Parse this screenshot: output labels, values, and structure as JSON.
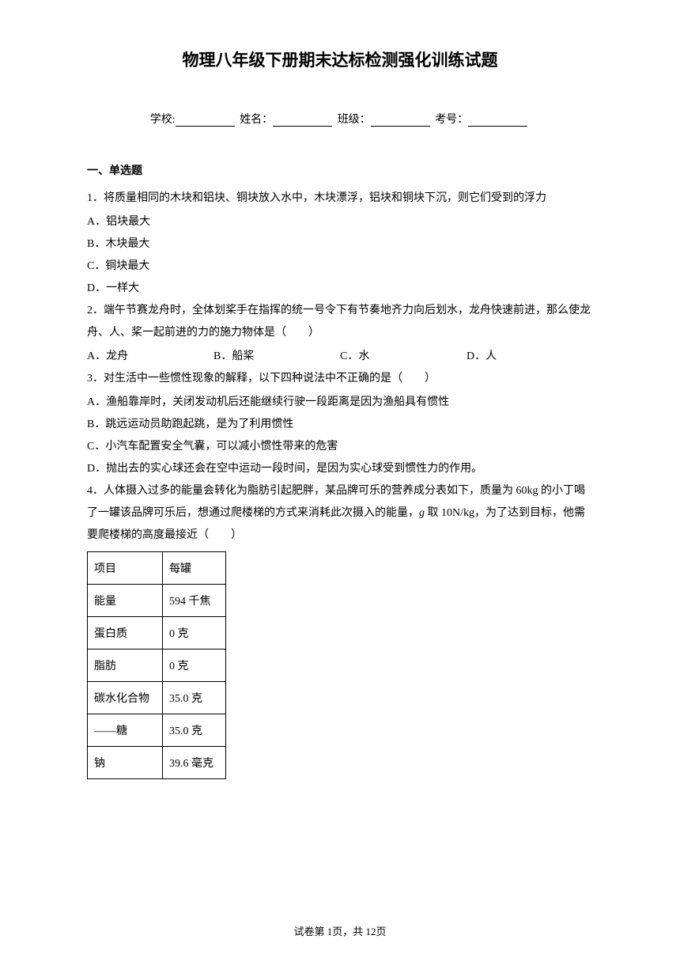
{
  "title": "物理八年级下册期末达标检测强化训练试题",
  "info": {
    "school_label": "学校:",
    "name_label": "姓名：",
    "class_label": "班级：",
    "exam_no_label": "考号："
  },
  "section_header": "一、单选题",
  "q1": {
    "text": "1．将质量相同的木块和铝块、铜块放入水中，木块漂浮，铝块和铜块下沉，则它们受到的浮力",
    "a": "A．铝块最大",
    "b": "B．木块最大",
    "c": "C．铜块最大",
    "d": "D．一样大"
  },
  "q2": {
    "text": "2．端午节赛龙舟时，全体划桨手在指挥的统一号令下有节奏地齐力向后划水，龙舟快速前进，那么使龙舟、人、桨一起前进的力的施力物体是（　　）",
    "a": "A．龙舟",
    "b": "B．船桨",
    "c": "C．水",
    "d": "D．人"
  },
  "q3": {
    "text": "3．对生活中一些惯性现象的解释，以下四种说法中不正确的是（　　）",
    "a": "A．渔船靠岸时，关闭发动机后还能继续行驶一段距离是因为渔船具有惯性",
    "b": "B．跳远运动员助跑起跳，是为了利用惯性",
    "c": "C．小汽车配置安全气囊，可以减小惯性带来的危害",
    "d": "D．抛出去的实心球还会在空中运动一段时间，是因为实心球受到惯性力的作用。"
  },
  "q4": {
    "text_part1": "4．人体摄入过多的能量会转化为脂肪引起肥胖，某品牌可乐的营养成分表如下，质量为 60kg 的小丁喝了一罐该品牌可乐后，想通过爬楼梯的方式来消耗此次摄入的能量，",
    "text_part2": "取 10N/kg，为了达到目标，他需要爬楼梯的高度最接近（　　）"
  },
  "table": {
    "header": {
      "col1": "项目",
      "col2": "每罐"
    },
    "rows": [
      {
        "col1": "能量",
        "col2": "594 千焦"
      },
      {
        "col1": "蛋白质",
        "col2": "0 克"
      },
      {
        "col1": "脂肪",
        "col2": "0 克"
      },
      {
        "col1": "碳水化合物",
        "col2": "35.0 克"
      },
      {
        "col1": "——糖",
        "col2": "35.0 克"
      },
      {
        "col1": "钠",
        "col2": "39.6 毫克"
      }
    ]
  },
  "footer": "试卷第 1页，共 12页"
}
